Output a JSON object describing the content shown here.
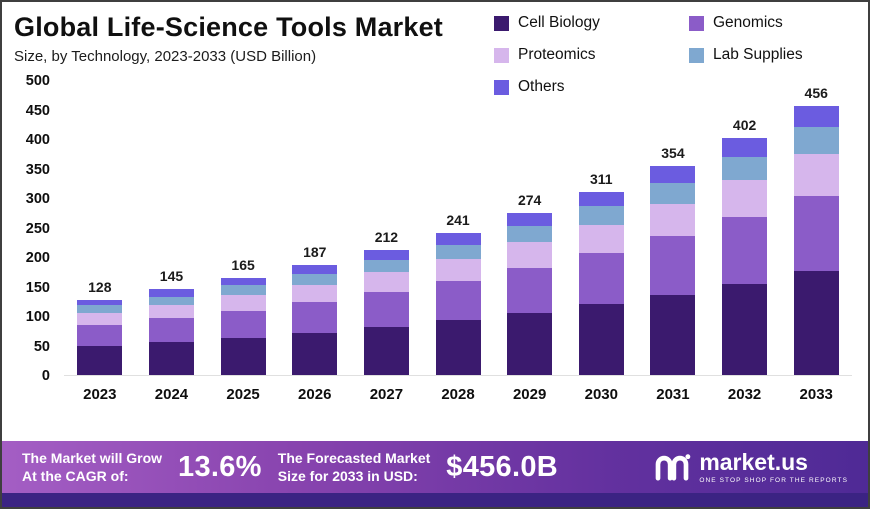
{
  "header": {
    "title": "Global Life-Science Tools Market",
    "subtitle": "Size, by Technology, 2023-2033 (USD Billion)"
  },
  "chart_data": {
    "type": "bar",
    "stacked": true,
    "title": "Global Life-Science Tools Market Size, by Technology, 2023-2033 (USD Billion)",
    "xlabel": "",
    "ylabel": "USD Billion",
    "ylim": [
      0,
      500
    ],
    "yticks": [
      0,
      50,
      100,
      150,
      200,
      250,
      300,
      350,
      400,
      450,
      500
    ],
    "grid": false,
    "legend_position": "top-right",
    "categories": [
      "2023",
      "2024",
      "2025",
      "2026",
      "2027",
      "2028",
      "2029",
      "2030",
      "2031",
      "2032",
      "2033"
    ],
    "totals": [
      128,
      145,
      165,
      187,
      212,
      241,
      274,
      311,
      354,
      402,
      456
    ],
    "series": [
      {
        "name": "Cell Biology",
        "color": "#3b1a6e",
        "values": [
          49,
          56,
          63,
          72,
          82,
          93,
          105,
          120,
          136,
          155,
          176
        ]
      },
      {
        "name": "Genomics",
        "color": "#8b5cc8",
        "values": [
          36,
          41,
          46,
          52,
          59,
          67,
          77,
          87,
          99,
          113,
          128
        ]
      },
      {
        "name": "Proteomics",
        "color": "#d6b6ec",
        "values": [
          20,
          22,
          26,
          29,
          33,
          37,
          43,
          48,
          55,
          62,
          71
        ]
      },
      {
        "name": "Lab Supplies",
        "color": "#7fa8d0",
        "values": [
          13,
          14,
          17,
          19,
          21,
          24,
          27,
          31,
          35,
          40,
          45
        ]
      },
      {
        "name": "Others",
        "color": "#6b5ce0",
        "values": [
          10,
          12,
          13,
          15,
          17,
          20,
          22,
          25,
          29,
          32,
          36
        ]
      }
    ]
  },
  "banner": {
    "cagr_label_line1": "The Market will Grow",
    "cagr_label_line2": "At the CAGR of:",
    "cagr_value": "13.6%",
    "forecast_label_line1": "The Forecasted Market",
    "forecast_label_line2": "Size for 2033 in USD:",
    "forecast_value": "$456.0B",
    "brand": "market.us",
    "brand_tagline": "ONE STOP SHOP FOR THE REPORTS"
  },
  "colors": {
    "banner_gradient_start": "#a45ec4",
    "banner_gradient_end": "#4f2a96",
    "bottom_strip": "#3b2383"
  }
}
